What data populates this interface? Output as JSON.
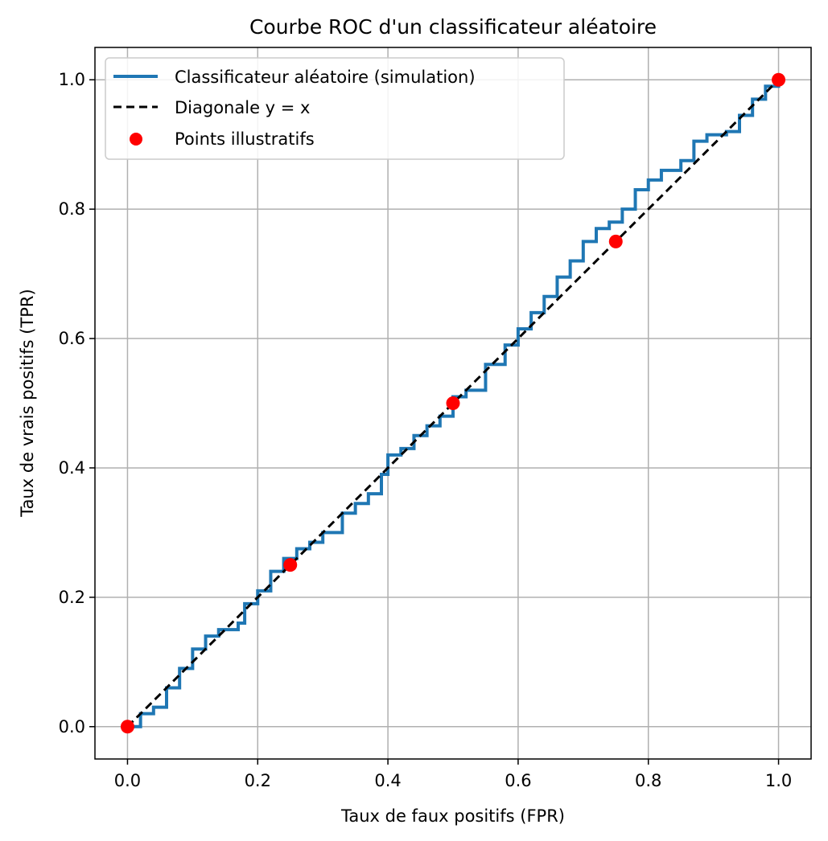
{
  "chart_data": {
    "type": "line",
    "title": "Courbe ROC d'un classificateur aléatoire",
    "xlabel": "Taux de faux positifs (FPR)",
    "ylabel": "Taux de vrais positifs (TPR)",
    "xlim": [
      -0.05,
      1.05
    ],
    "ylim": [
      -0.05,
      1.05
    ],
    "xticks": [
      0.0,
      0.2,
      0.4,
      0.6,
      0.8,
      1.0
    ],
    "yticks": [
      0.0,
      0.2,
      0.4,
      0.6,
      0.8,
      1.0
    ],
    "xtick_labels": [
      "0.0",
      "0.2",
      "0.4",
      "0.6",
      "0.8",
      "1.0"
    ],
    "ytick_labels": [
      "0.0",
      "0.2",
      "0.4",
      "0.6",
      "0.8",
      "1.0"
    ],
    "grid": true,
    "legend_position": "top-left",
    "series": [
      {
        "name": "Classificateur aléatoire (simulation)",
        "kind": "step-line",
        "color": "#1f77b4",
        "x": [
          0.0,
          0.02,
          0.04,
          0.06,
          0.08,
          0.1,
          0.12,
          0.14,
          0.17,
          0.18,
          0.2,
          0.22,
          0.24,
          0.26,
          0.28,
          0.3,
          0.33,
          0.35,
          0.37,
          0.39,
          0.4,
          0.42,
          0.44,
          0.46,
          0.48,
          0.5,
          0.52,
          0.55,
          0.58,
          0.6,
          0.62,
          0.64,
          0.66,
          0.68,
          0.7,
          0.72,
          0.74,
          0.76,
          0.78,
          0.8,
          0.82,
          0.85,
          0.87,
          0.89,
          0.92,
          0.94,
          0.96,
          0.98,
          1.0
        ],
        "y": [
          0.0,
          0.02,
          0.03,
          0.06,
          0.09,
          0.12,
          0.14,
          0.15,
          0.16,
          0.19,
          0.21,
          0.24,
          0.26,
          0.275,
          0.285,
          0.3,
          0.33,
          0.345,
          0.36,
          0.39,
          0.42,
          0.43,
          0.45,
          0.465,
          0.48,
          0.51,
          0.52,
          0.56,
          0.59,
          0.615,
          0.64,
          0.665,
          0.695,
          0.72,
          0.75,
          0.77,
          0.78,
          0.8,
          0.83,
          0.845,
          0.86,
          0.875,
          0.905,
          0.915,
          0.92,
          0.945,
          0.97,
          0.99,
          1.0
        ]
      },
      {
        "name": "Diagonale y = x",
        "kind": "dashed-line",
        "color": "#000000",
        "x": [
          0.0,
          1.0
        ],
        "y": [
          0.0,
          1.0
        ]
      },
      {
        "name": "Points illustratifs",
        "kind": "scatter",
        "color": "#ff0000",
        "x": [
          0.0,
          0.25,
          0.5,
          0.75,
          1.0
        ],
        "y": [
          0.0,
          0.25,
          0.5,
          0.75,
          1.0
        ]
      }
    ]
  }
}
